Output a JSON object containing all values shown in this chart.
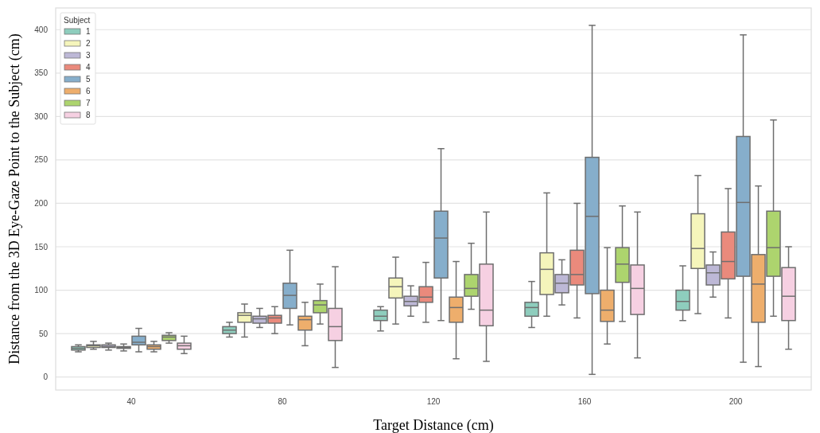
{
  "chart_data": {
    "type": "box",
    "xlabel": "Target Distance (cm)",
    "ylabel": "Distance from the 3D Eye-Gaze Point to the Subject (cm)",
    "legend_title": "Subject",
    "legend": "top left",
    "grid": "y",
    "categories": [
      "40",
      "80",
      "120",
      "160",
      "200"
    ],
    "ylim": [
      -15,
      425
    ],
    "yticks": [
      0,
      50,
      100,
      150,
      200,
      250,
      300,
      350,
      400
    ],
    "series": [
      {
        "name": "1",
        "color": "#8ecdbd",
        "boxes": [
          {
            "low": 29,
            "q1": 31,
            "median": 33,
            "q3": 35,
            "high": 37
          },
          {
            "low": 46,
            "q1": 50,
            "median": 54,
            "q3": 58,
            "high": 63
          },
          {
            "low": 53,
            "q1": 65,
            "median": 70,
            "q3": 77,
            "high": 81
          },
          {
            "low": 57,
            "q1": 70,
            "median": 80,
            "q3": 86,
            "high": 110
          },
          {
            "low": 65,
            "q1": 77,
            "median": 87,
            "q3": 100,
            "high": 128
          }
        ]
      },
      {
        "name": "2",
        "color": "#f5f5bb",
        "boxes": [
          {
            "low": 32,
            "q1": 34,
            "median": 36,
            "q3": 37,
            "high": 41
          },
          {
            "low": 46,
            "q1": 63,
            "median": 71,
            "q3": 74,
            "high": 84
          },
          {
            "low": 61,
            "q1": 91,
            "median": 104,
            "q3": 114,
            "high": 138
          },
          {
            "low": 70,
            "q1": 95,
            "median": 124,
            "q3": 143,
            "high": 212
          },
          {
            "low": 73,
            "q1": 125,
            "median": 148,
            "q3": 188,
            "high": 232
          }
        ]
      },
      {
        "name": "3",
        "color": "#bdb8d6",
        "boxes": [
          {
            "low": 31,
            "q1": 34,
            "median": 35,
            "q3": 37,
            "high": 39
          },
          {
            "low": 57,
            "q1": 62,
            "median": 67,
            "q3": 70,
            "high": 79
          },
          {
            "low": 70,
            "q1": 82,
            "median": 87,
            "q3": 93,
            "high": 105
          },
          {
            "low": 83,
            "q1": 97,
            "median": 108,
            "q3": 118,
            "high": 135
          },
          {
            "low": 92,
            "q1": 106,
            "median": 120,
            "q3": 129,
            "high": 144
          }
        ]
      },
      {
        "name": "4",
        "color": "#ea8a7c",
        "boxes": [
          {
            "low": 30,
            "q1": 33,
            "median": 34,
            "q3": 35,
            "high": 38
          },
          {
            "low": 50,
            "q1": 62,
            "median": 68,
            "q3": 71,
            "high": 81
          },
          {
            "low": 63,
            "q1": 86,
            "median": 92,
            "q3": 104,
            "high": 132
          },
          {
            "low": 68,
            "q1": 106,
            "median": 118,
            "q3": 146,
            "high": 200
          },
          {
            "low": 68,
            "q1": 113,
            "median": 133,
            "q3": 167,
            "high": 217
          }
        ]
      },
      {
        "name": "5",
        "color": "#86aecb",
        "boxes": [
          {
            "low": 29,
            "q1": 37,
            "median": 40,
            "q3": 47,
            "high": 56
          },
          {
            "low": 60,
            "q1": 79,
            "median": 94,
            "q3": 108,
            "high": 146
          },
          {
            "low": 65,
            "q1": 114,
            "median": 160,
            "q3": 191,
            "high": 263
          },
          {
            "low": 3,
            "q1": 96,
            "median": 185,
            "q3": 253,
            "high": 405
          },
          {
            "low": 17,
            "q1": 116,
            "median": 201,
            "q3": 277,
            "high": 394
          }
        ]
      },
      {
        "name": "6",
        "color": "#eeae6c",
        "boxes": [
          {
            "low": 29,
            "q1": 32,
            "median": 35,
            "q3": 37,
            "high": 41
          },
          {
            "low": 36,
            "q1": 54,
            "median": 66,
            "q3": 70,
            "high": 86
          },
          {
            "low": 21,
            "q1": 63,
            "median": 80,
            "q3": 92,
            "high": 133
          },
          {
            "low": 38,
            "q1": 64,
            "median": 77,
            "q3": 100,
            "high": 149
          },
          {
            "low": 12,
            "q1": 63,
            "median": 107,
            "q3": 141,
            "high": 220
          }
        ]
      },
      {
        "name": "7",
        "color": "#add46e",
        "boxes": [
          {
            "low": 39,
            "q1": 42,
            "median": 46,
            "q3": 48,
            "high": 51
          },
          {
            "low": 61,
            "q1": 74,
            "median": 83,
            "q3": 88,
            "high": 107
          },
          {
            "low": 78,
            "q1": 93,
            "median": 102,
            "q3": 118,
            "high": 154
          },
          {
            "low": 64,
            "q1": 109,
            "median": 130,
            "q3": 149,
            "high": 197
          },
          {
            "low": 70,
            "q1": 116,
            "median": 149,
            "q3": 191,
            "high": 296
          }
        ]
      },
      {
        "name": "8",
        "color": "#f6d0e2",
        "boxes": [
          {
            "low": 27,
            "q1": 32,
            "median": 36,
            "q3": 39,
            "high": 47
          },
          {
            "low": 11,
            "q1": 42,
            "median": 58,
            "q3": 79,
            "high": 127
          },
          {
            "low": 18,
            "q1": 59,
            "median": 77,
            "q3": 130,
            "high": 190
          },
          {
            "low": 22,
            "q1": 72,
            "median": 102,
            "q3": 129,
            "high": 190
          },
          {
            "low": 32,
            "q1": 65,
            "median": 93,
            "q3": 126,
            "high": 150
          }
        ]
      }
    ]
  }
}
